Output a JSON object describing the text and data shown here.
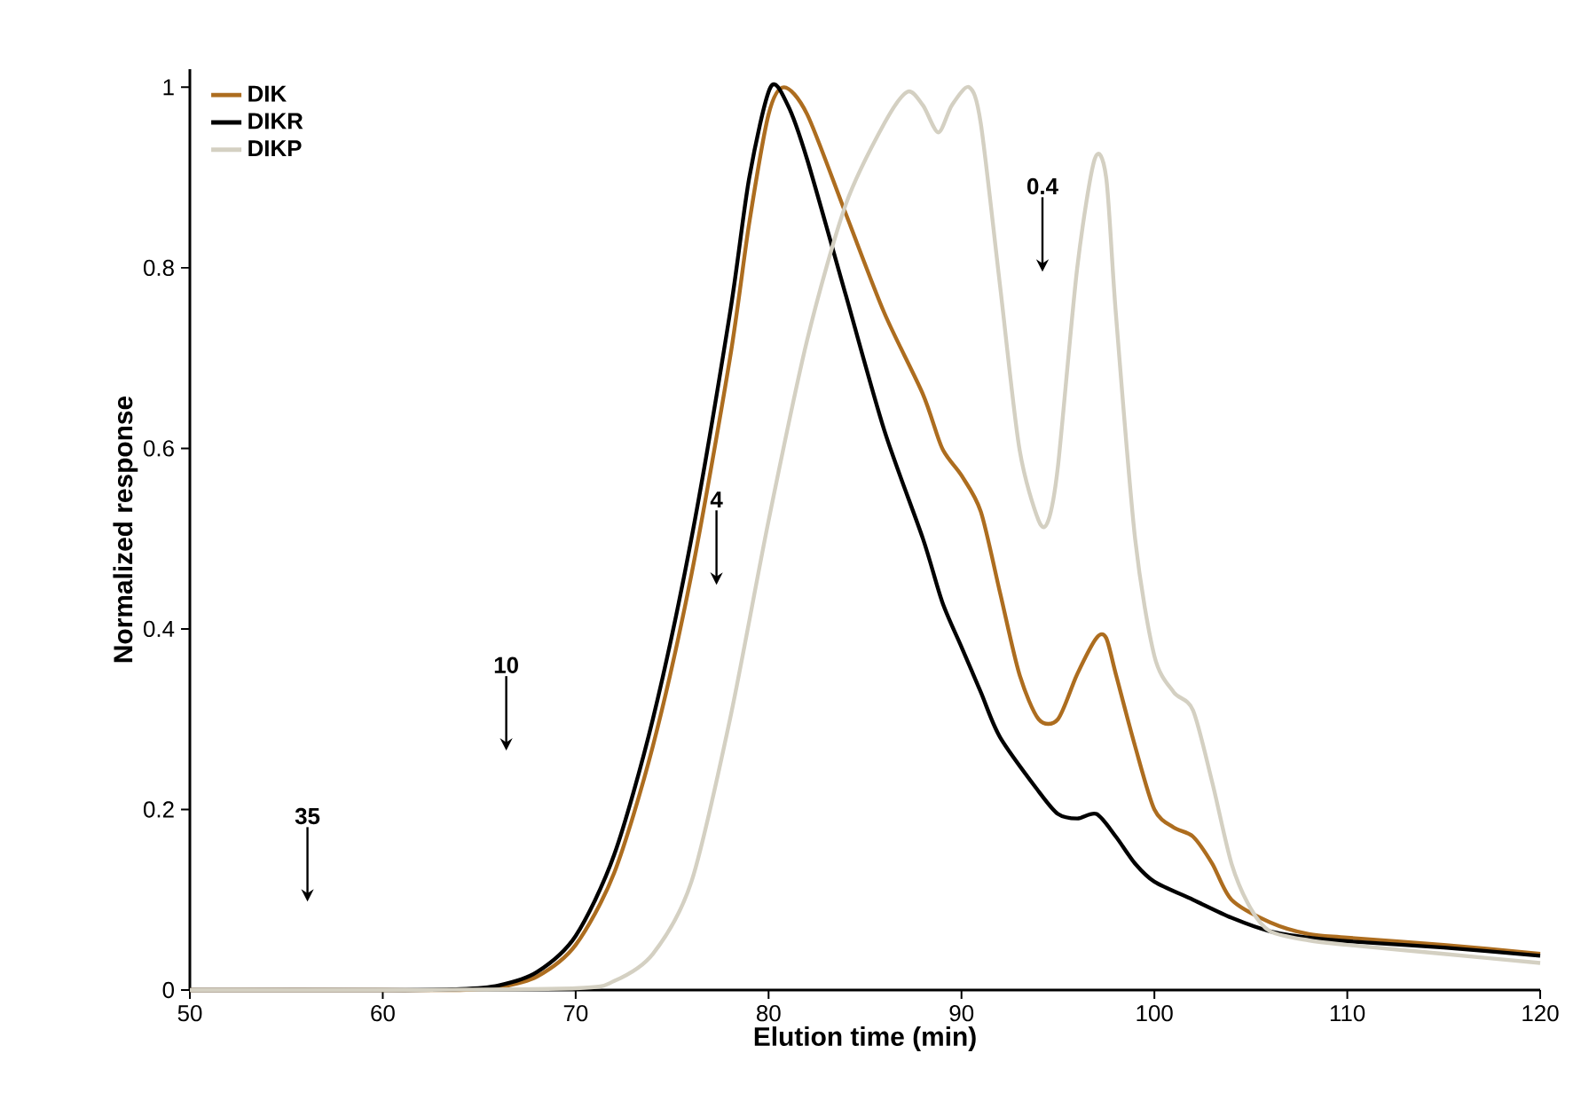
{
  "chart_data": {
    "type": "line",
    "xlabel": "Elution time (min)",
    "ylabel": "Normalized response",
    "xlim": [
      50,
      120
    ],
    "ylim": [
      0,
      1.02
    ],
    "xticks": [
      50,
      60,
      70,
      80,
      90,
      100,
      110,
      120
    ],
    "yticks": [
      0,
      0.2,
      0.4,
      0.6,
      0.8,
      1
    ],
    "grid": false,
    "legend": "top left",
    "marker": "none",
    "line_style": "solid",
    "series": [
      {
        "name": "DIK",
        "color": "#ad6d1f",
        "x": [
          50,
          60,
          64,
          66,
          68,
          70,
          72,
          74,
          76,
          78,
          79,
          80,
          80.8,
          82,
          84,
          86,
          88,
          89,
          90,
          91,
          92,
          93,
          94,
          95,
          96,
          97,
          97.5,
          98,
          99,
          100,
          101,
          102,
          103,
          104,
          106,
          108,
          110,
          115,
          120
        ],
        "values": [
          0,
          0,
          0,
          0.003,
          0.015,
          0.05,
          0.13,
          0.27,
          0.46,
          0.7,
          0.85,
          0.97,
          1.0,
          0.97,
          0.86,
          0.75,
          0.66,
          0.6,
          0.57,
          0.53,
          0.44,
          0.35,
          0.3,
          0.3,
          0.35,
          0.39,
          0.39,
          0.35,
          0.27,
          0.2,
          0.18,
          0.17,
          0.14,
          0.1,
          0.075,
          0.062,
          0.058,
          0.05,
          0.04
        ]
      },
      {
        "name": "DIKR",
        "color": "#000000",
        "x": [
          50,
          60,
          64,
          66,
          68,
          70,
          72,
          74,
          76,
          78,
          79,
          80.1,
          81,
          82,
          84,
          86,
          88,
          89,
          90,
          91,
          92,
          94,
          95,
          96,
          97,
          98,
          99,
          100,
          102,
          104,
          106,
          108,
          110,
          115,
          120
        ],
        "values": [
          0,
          0,
          0.001,
          0.005,
          0.02,
          0.06,
          0.15,
          0.3,
          0.5,
          0.75,
          0.9,
          1.0,
          0.98,
          0.92,
          0.77,
          0.62,
          0.5,
          0.43,
          0.38,
          0.33,
          0.28,
          0.22,
          0.195,
          0.19,
          0.195,
          0.17,
          0.14,
          0.12,
          0.1,
          0.08,
          0.065,
          0.058,
          0.054,
          0.047,
          0.038
        ]
      },
      {
        "name": "DIKP",
        "color": "#d4d0c2",
        "x": [
          50,
          60,
          70,
          72,
          74,
          76,
          78,
          80,
          82,
          84,
          86,
          87.2,
          88,
          88.8,
          89.5,
          90.4,
          91,
          92,
          93,
          94,
          94.5,
          95,
          96,
          96.9,
          97.5,
          98,
          99,
          100,
          101,
          102,
          103,
          104,
          105,
          106,
          108,
          110,
          115,
          120
        ],
        "values": [
          0,
          0,
          0.002,
          0.01,
          0.04,
          0.12,
          0.3,
          0.52,
          0.72,
          0.87,
          0.96,
          0.995,
          0.98,
          0.95,
          0.98,
          1.0,
          0.96,
          0.78,
          0.6,
          0.52,
          0.52,
          0.58,
          0.8,
          0.92,
          0.9,
          0.75,
          0.5,
          0.37,
          0.33,
          0.31,
          0.23,
          0.14,
          0.09,
          0.065,
          0.055,
          0.05,
          0.04,
          0.03
        ]
      }
    ],
    "annotations": [
      "35",
      "10",
      "4",
      "0.4"
    ]
  }
}
